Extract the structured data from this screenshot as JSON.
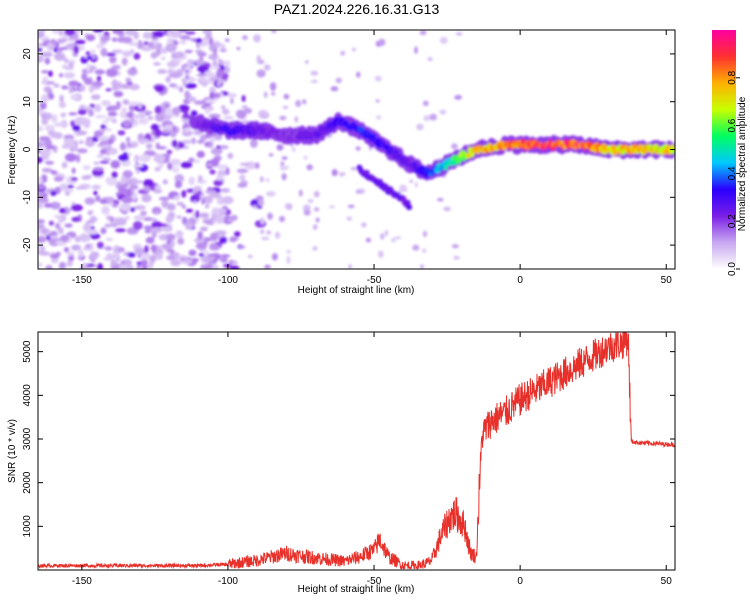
{
  "title": "PAZ1.2024.226.16.31.G13",
  "chart_data": [
    {
      "type": "heatmap",
      "name": "spectrogram",
      "xlabel": "Height of straight line (km)",
      "ylabel": "Frequency (Hz)",
      "xlim": [
        -165,
        53
      ],
      "ylim": [
        -25,
        25
      ],
      "xticks": [
        -150,
        -100,
        -50,
        0,
        50
      ],
      "yticks": [
        -20,
        -10,
        0,
        10,
        20
      ],
      "colorbar": {
        "label": "Normalized spectral amplitude",
        "range": [
          0,
          1
        ],
        "ticks": [
          0.0,
          0.2,
          0.4,
          0.6,
          0.8
        ],
        "colormap": [
          "#ffffff",
          "#c8a8f0",
          "#7a1ee6",
          "#2a00ff",
          "#00c8ff",
          "#00ff60",
          "#c8ff00",
          "#ffb000",
          "#ff3030",
          "#ff00a0"
        ]
      },
      "ridge": {
        "x": [
          -112,
          -100,
          -90,
          -80,
          -70,
          -62,
          -55,
          -45,
          -38,
          -32,
          -25,
          -15,
          -5,
          0,
          10,
          20,
          30,
          40,
          53
        ],
        "frequency": [
          6,
          4,
          4,
          3,
          3,
          6,
          4,
          0,
          -3,
          -5,
          -3,
          0,
          1,
          1,
          1,
          1,
          0,
          0,
          0
        ],
        "amplitude": [
          0.2,
          0.3,
          0.25,
          0.2,
          0.25,
          0.3,
          0.35,
          0.3,
          0.25,
          0.35,
          0.5,
          0.75,
          0.8,
          0.85,
          0.9,
          0.9,
          0.75,
          0.75,
          0.75
        ]
      },
      "noise_region_x": [
        -165,
        -100
      ]
    },
    {
      "type": "line",
      "name": "snr",
      "xlabel": "Height of straight line (km)",
      "ylabel": "SNR (10 * v/v)",
      "xlim": [
        -165,
        53
      ],
      "ylim": [
        0,
        5450
      ],
      "xticks": [
        -150,
        -100,
        -50,
        0,
        50
      ],
      "yticks": [
        1000,
        2000,
        3000,
        4000,
        5000
      ],
      "color": "#e8302a",
      "x": [
        -165,
        -150,
        -130,
        -110,
        -100,
        -90,
        -85,
        -80,
        -75,
        -70,
        -60,
        -55,
        -52,
        -50,
        -48,
        -45,
        -40,
        -35,
        -32,
        -30,
        -27,
        -24,
        -22,
        -19,
        -17,
        -15,
        -14,
        -13,
        -10,
        -5,
        0,
        5,
        10,
        15,
        20,
        25,
        30,
        35,
        37,
        38,
        40,
        45,
        50,
        53
      ],
      "values": [
        100,
        100,
        100,
        100,
        130,
        220,
        300,
        380,
        320,
        280,
        200,
        300,
        400,
        450,
        700,
        300,
        100,
        100,
        150,
        250,
        800,
        1200,
        1300,
        1000,
        400,
        300,
        1800,
        3100,
        3400,
        3600,
        3900,
        4100,
        4300,
        4500,
        4700,
        4900,
        5100,
        5200,
        5300,
        2950,
        2920,
        2900,
        2880,
        2870
      ]
    }
  ]
}
